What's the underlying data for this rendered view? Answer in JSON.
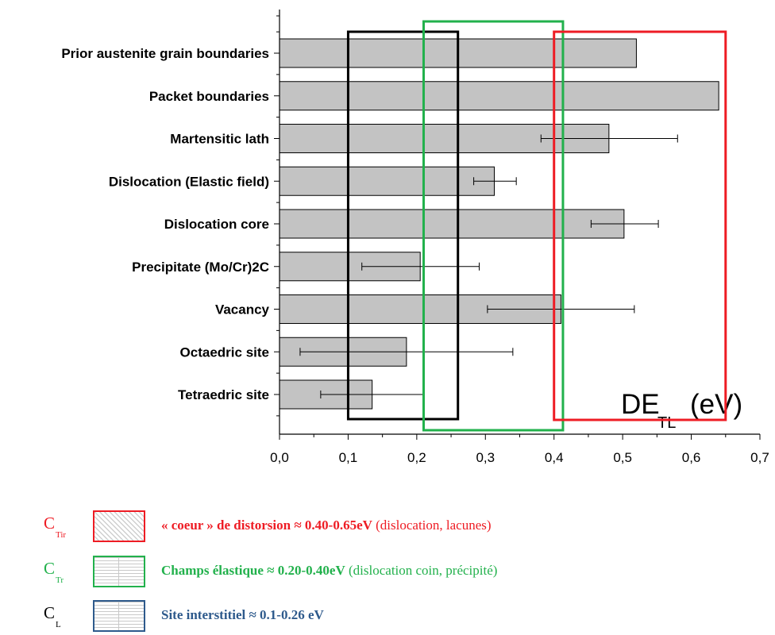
{
  "chart_data": {
    "type": "bar",
    "orientation": "horizontal",
    "categories": [
      "Prior austenite grain boundaries",
      "Packet boundaries",
      "Martensitic lath",
      "Dislocation (Elastic field)",
      "Dislocation core",
      "Precipitate (Mo/Cr)2C",
      "Vacancy",
      "Octaedric site",
      "Tetraedric site"
    ],
    "values": [
      0.52,
      0.64,
      0.48,
      0.313,
      0.502,
      0.205,
      0.41,
      0.185,
      0.135
    ],
    "error_low": [
      null,
      null,
      0.381,
      0.283,
      0.454,
      0.12,
      0.303,
      0.03,
      0.06
    ],
    "error_high": [
      null,
      null,
      0.58,
      0.345,
      0.552,
      0.291,
      0.517,
      0.34,
      0.21
    ],
    "xlim": [
      0,
      0.7
    ],
    "xticks": [
      "0,0",
      "0,1",
      "0,2",
      "0,3",
      "0,4",
      "0,5",
      "0,6",
      "0,7"
    ],
    "xlabel": "DE",
    "xlabel_sub": "TL",
    "xlabel_unit": "(eV)",
    "bar_color": "#c3c3c3",
    "grid": false,
    "ranges": [
      {
        "name": "C_L",
        "from": 0.1,
        "to": 0.26,
        "color": "#000000"
      },
      {
        "name": "C_Tr",
        "from": 0.21,
        "to": 0.413,
        "color": "#22b14c"
      },
      {
        "name": "C_Tir",
        "from": 0.4,
        "to": 0.65,
        "color": "#ee1c24"
      }
    ]
  },
  "legend": [
    {
      "symbol": "C",
      "sub": "Tir",
      "color": "#ee1c24",
      "swatch_border": "#ee1c24",
      "swatch": "hatch",
      "bold_text": "« coeur » de distorsion ≈ 0.40-0.65eV",
      "plain_text": " (dislocation, lacunes)",
      "text_color": "#ee1c24"
    },
    {
      "symbol": "C",
      "sub": "Tr",
      "color": "#22b14c",
      "swatch_border": "#22b14c",
      "swatch": "hlines",
      "bold_text": "Champs élastique ≈ 0.20-0.40eV",
      "plain_text": " (dislocation coin, précipité)",
      "text_color": "#22b14c"
    },
    {
      "symbol": "C",
      "sub": "L",
      "color": "#000000",
      "swatch_border": "#2e5a8c",
      "swatch": "hlines",
      "bold_text": "Site interstitiel ≈ 0.1-0.26 eV",
      "plain_text": "",
      "text_color": "#2e5a8c"
    }
  ]
}
